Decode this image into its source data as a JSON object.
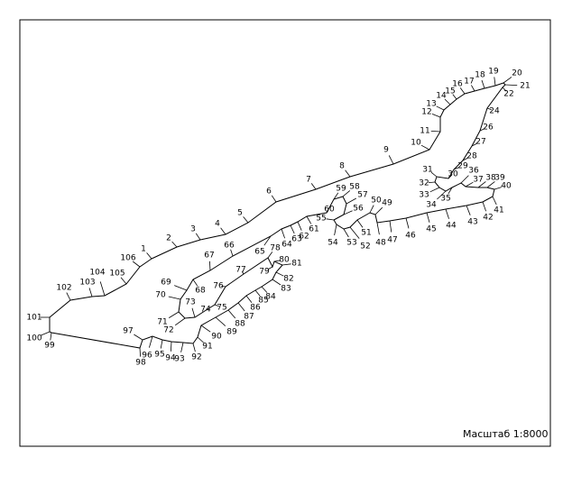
{
  "labels": [
    1,
    2,
    3,
    4,
    5,
    6,
    7,
    8,
    9,
    10,
    11,
    12,
    13,
    14,
    15,
    16,
    17,
    18,
    19,
    20,
    21,
    22,
    24,
    26,
    27,
    28,
    29,
    30,
    31,
    32,
    33,
    34,
    35,
    36,
    37,
    38,
    39,
    40,
    41,
    42,
    43,
    44,
    45,
    46,
    47,
    48,
    49,
    50,
    51,
    52,
    53,
    54,
    55,
    56,
    57,
    58,
    59,
    60,
    61,
    62,
    63,
    64,
    65,
    66,
    67,
    68,
    69,
    70,
    71,
    72,
    73,
    74,
    75,
    76,
    77,
    78,
    79,
    80,
    81,
    82,
    83,
    84,
    85,
    86,
    87,
    88,
    89,
    90,
    91,
    92,
    93,
    94,
    95,
    96,
    97,
    98,
    99,
    100,
    101,
    102,
    103,
    104,
    105,
    106
  ],
  "scale_label": "Масштаб 1:8000"
}
